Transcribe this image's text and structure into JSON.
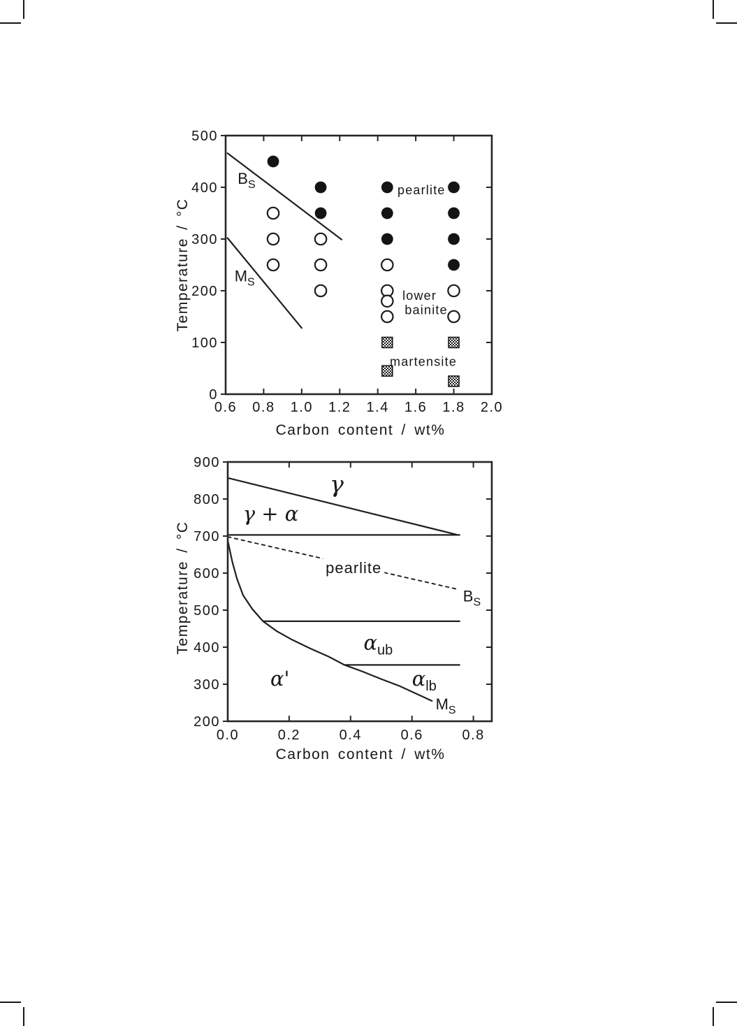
{
  "figure": {
    "description": "Two stacked phase/transformation diagrams for steels",
    "ink_color": "#1f1f1f",
    "background": "#ffffff"
  },
  "chart_data": [
    {
      "type": "scatter",
      "title": "",
      "xlabel": "Carbon content / wt%",
      "ylabel": "Temperature / °C",
      "xlim": [
        0.6,
        2.0
      ],
      "ylim": [
        0,
        500
      ],
      "grid": false,
      "xticks": [
        {
          "v": 0.6,
          "label": "0.6"
        },
        {
          "v": 0.8,
          "label": "0.8"
        },
        {
          "v": 1.0,
          "label": "1.0"
        },
        {
          "v": 1.2,
          "label": "1.2"
        },
        {
          "v": 1.4,
          "label": "1.4"
        },
        {
          "v": 1.6,
          "label": "1.6"
        },
        {
          "v": 1.8,
          "label": "1.8"
        },
        {
          "v": 2.0,
          "label": "2.0"
        }
      ],
      "yticks": [
        {
          "v": 0,
          "label": "0"
        },
        {
          "v": 100,
          "label": "100"
        },
        {
          "v": 200,
          "label": "200"
        },
        {
          "v": 300,
          "label": "300"
        },
        {
          "v": 400,
          "label": "400"
        },
        {
          "v": 500,
          "label": "500"
        }
      ],
      "series": [
        {
          "name": "pearlite",
          "marker": "filled-circle",
          "points": [
            [
              0.85,
              450
            ],
            [
              1.1,
              400
            ],
            [
              1.1,
              350
            ],
            [
              1.45,
              400
            ],
            [
              1.45,
              350
            ],
            [
              1.45,
              300
            ],
            [
              1.8,
              400
            ],
            [
              1.8,
              350
            ],
            [
              1.8,
              300
            ],
            [
              1.8,
              250
            ]
          ]
        },
        {
          "name": "lower bainite",
          "marker": "open-circle",
          "points": [
            [
              0.85,
              350
            ],
            [
              0.85,
              300
            ],
            [
              0.85,
              250
            ],
            [
              1.1,
              300
            ],
            [
              1.1,
              250
            ],
            [
              1.1,
              200
            ],
            [
              1.45,
              250
            ],
            [
              1.45,
              200
            ],
            [
              1.45,
              180
            ],
            [
              1.45,
              150
            ],
            [
              1.8,
              200
            ],
            [
              1.8,
              150
            ]
          ]
        },
        {
          "name": "martensite",
          "marker": "stippled-square",
          "points": [
            [
              1.45,
              100
            ],
            [
              1.45,
              45
            ],
            [
              1.8,
              100
            ],
            [
              1.8,
              25
            ]
          ]
        }
      ],
      "lines": [
        {
          "name": "Bs-line",
          "style": "solid",
          "points": [
            [
              0.61,
              466
            ],
            [
              1.21,
              299
            ]
          ]
        },
        {
          "name": "Ms-line",
          "style": "solid",
          "points": [
            [
              0.61,
              302
            ],
            [
              1.0,
              128
            ]
          ]
        }
      ],
      "annotations": [
        {
          "text": "B",
          "sub": "S",
          "x": 0.71,
          "y": 416,
          "kind": "lbl"
        },
        {
          "text": "M",
          "sub": "S",
          "x": 0.7,
          "y": 228,
          "kind": "lbl"
        },
        {
          "text": "pearlite",
          "x": 1.63,
          "y": 396,
          "kind": "plain-sm"
        },
        {
          "text": "lower",
          "x": 1.62,
          "y": 192,
          "kind": "plain-sm"
        },
        {
          "text": "bainite",
          "x": 1.655,
          "y": 164,
          "kind": "plain-sm"
        },
        {
          "text": "martensite",
          "x": 1.64,
          "y": 64,
          "kind": "plain-sm"
        }
      ]
    },
    {
      "type": "line",
      "title": "",
      "xlabel": "Carbon content / wt%",
      "ylabel": "Temperature / °C",
      "xlim": [
        0.0,
        0.86
      ],
      "ylim": [
        200,
        900
      ],
      "grid": false,
      "xticks": [
        {
          "v": 0.0,
          "label": "0.0"
        },
        {
          "v": 0.2,
          "label": "0.2"
        },
        {
          "v": 0.4,
          "label": "0.4"
        },
        {
          "v": 0.6,
          "label": "0.6"
        },
        {
          "v": 0.8,
          "label": "0.8"
        }
      ],
      "yticks": [
        {
          "v": 200,
          "label": "200"
        },
        {
          "v": 300,
          "label": "300"
        },
        {
          "v": 400,
          "label": "400"
        },
        {
          "v": 500,
          "label": "500"
        },
        {
          "v": 600,
          "label": "600"
        },
        {
          "v": 700,
          "label": "700"
        },
        {
          "v": 800,
          "label": "800"
        },
        {
          "v": 900,
          "label": "900"
        }
      ],
      "series": [],
      "lines": [
        {
          "name": "gamma-boundary",
          "style": "solid",
          "points": [
            [
              0.0,
              857
            ],
            [
              0.745,
              704
            ]
          ]
        },
        {
          "name": "A1-horizontal",
          "style": "solid",
          "points": [
            [
              0.0,
              703
            ],
            [
              0.755,
              703
            ]
          ]
        },
        {
          "name": "Bs-dashed",
          "style": "dashed",
          "points": [
            [
              0.0,
              698
            ],
            [
              0.75,
              556
            ]
          ]
        },
        {
          "name": "upper-bainite-horizontal",
          "style": "solid",
          "points": [
            [
              0.115,
              470
            ],
            [
              0.755,
              470
            ]
          ]
        },
        {
          "name": "lower-bainite-horizontal",
          "style": "solid",
          "points": [
            [
              0.38,
              352
            ],
            [
              0.755,
              352
            ]
          ]
        },
        {
          "name": "Ms-curve",
          "style": "solid",
          "points": [
            [
              0.0,
              688
            ],
            [
              0.015,
              630
            ],
            [
              0.03,
              585
            ],
            [
              0.05,
              540
            ],
            [
              0.08,
              503
            ],
            [
              0.115,
              470
            ],
            [
              0.16,
              443
            ],
            [
              0.21,
              420
            ],
            [
              0.27,
              396
            ],
            [
              0.33,
              374
            ],
            [
              0.38,
              352
            ],
            [
              0.44,
              334
            ],
            [
              0.5,
              314
            ],
            [
              0.56,
              295
            ],
            [
              0.62,
              272
            ],
            [
              0.665,
              255
            ]
          ]
        }
      ],
      "annotations": [
        {
          "text": "γ",
          "x": 0.355,
          "y": 832,
          "kind": "greek-lg"
        },
        {
          "text": "γ + α",
          "x": 0.14,
          "y": 755,
          "kind": "greek"
        },
        {
          "text": "pearlite",
          "x": 0.41,
          "y": 613,
          "kind": "plain",
          "bg": true
        },
        {
          "text": "B",
          "sub": "S",
          "x": 0.795,
          "y": 537,
          "kind": "lbl"
        },
        {
          "text": "α",
          "sub": "ub",
          "x": 0.49,
          "y": 407,
          "kind": "greek"
        },
        {
          "text": "α",
          "sub": "lb",
          "x": 0.64,
          "y": 309,
          "kind": "greek"
        },
        {
          "text": "α'",
          "x": 0.17,
          "y": 309,
          "kind": "greek"
        },
        {
          "text": "M",
          "sub": "S",
          "x": 0.71,
          "y": 245,
          "kind": "lbl"
        }
      ]
    }
  ]
}
